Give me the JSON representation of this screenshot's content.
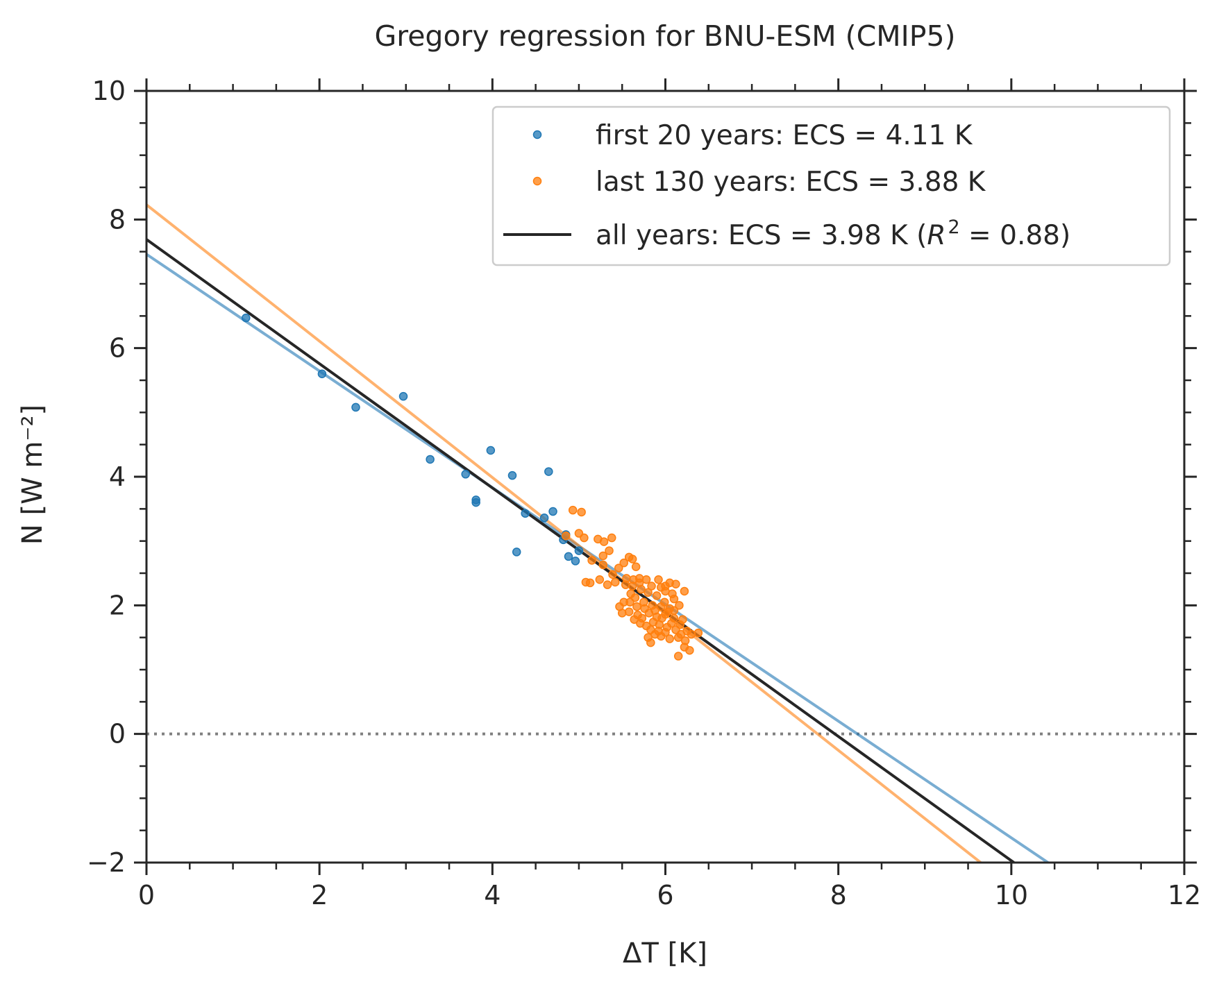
{
  "chart_data": {
    "type": "scatter",
    "title": "Gregory regression for BNU-ESM (CMIP5)",
    "xlabel": "ΔT [K]",
    "ylabel": "N [W m⁻²]",
    "xlim": [
      0,
      12
    ],
    "ylim": [
      -2,
      10
    ],
    "xticks": [
      0,
      2,
      4,
      6,
      8,
      10,
      12
    ],
    "yticks": [
      -2,
      0,
      2,
      4,
      6,
      8,
      10
    ],
    "xtick_labels": [
      "0",
      "2",
      "4",
      "6",
      "8",
      "10",
      "12"
    ],
    "ytick_labels": [
      "−2",
      "0",
      "2",
      "4",
      "6",
      "8",
      "10"
    ],
    "grid": false,
    "legend_position": "upper right",
    "colors": {
      "first": "#1f77b4",
      "last": "#ff7f0e",
      "all": "#262626",
      "zero_line": "#808080"
    },
    "series": [
      {
        "name": "first 20 years: ECS = 4.11 K",
        "kind": "scatter",
        "color": "#1f77b4",
        "points": [
          [
            1.15,
            6.47
          ],
          [
            2.03,
            5.6
          ],
          [
            2.42,
            5.08
          ],
          [
            2.97,
            5.25
          ],
          [
            3.28,
            4.27
          ],
          [
            3.69,
            4.04
          ],
          [
            3.81,
            3.6
          ],
          [
            3.81,
            3.64
          ],
          [
            3.98,
            4.41
          ],
          [
            4.23,
            4.02
          ],
          [
            4.28,
            2.83
          ],
          [
            4.38,
            3.43
          ],
          [
            4.6,
            3.36
          ],
          [
            4.65,
            4.08
          ],
          [
            4.7,
            3.46
          ],
          [
            4.82,
            3.02
          ],
          [
            4.88,
            2.76
          ],
          [
            4.96,
            2.69
          ],
          [
            5.0,
            2.85
          ],
          [
            4.85,
            3.1
          ]
        ]
      },
      {
        "name": "last 130 years: ECS = 3.88 K",
        "kind": "scatter",
        "color": "#ff7f0e",
        "points": [
          [
            4.93,
            3.48
          ],
          [
            5.03,
            3.45
          ],
          [
            5.0,
            3.12
          ],
          [
            5.06,
            3.05
          ],
          [
            4.85,
            3.08
          ],
          [
            5.22,
            3.03
          ],
          [
            5.29,
            2.99
          ],
          [
            5.38,
            3.05
          ],
          [
            5.28,
            2.77
          ],
          [
            5.35,
            2.85
          ],
          [
            5.15,
            2.7
          ],
          [
            5.28,
            2.63
          ],
          [
            5.52,
            2.66
          ],
          [
            5.58,
            2.75
          ],
          [
            5.62,
            2.72
          ],
          [
            5.66,
            2.6
          ],
          [
            5.46,
            2.58
          ],
          [
            5.39,
            2.48
          ],
          [
            5.08,
            2.36
          ],
          [
            5.13,
            2.35
          ],
          [
            5.24,
            2.4
          ],
          [
            5.33,
            2.32
          ],
          [
            5.42,
            2.36
          ],
          [
            5.55,
            2.42
          ],
          [
            5.63,
            2.4
          ],
          [
            5.7,
            2.42
          ],
          [
            5.78,
            2.4
          ],
          [
            5.84,
            2.3
          ],
          [
            5.95,
            2.28
          ],
          [
            6.0,
            2.3
          ],
          [
            6.05,
            2.35
          ],
          [
            6.12,
            2.33
          ],
          [
            6.22,
            2.22
          ],
          [
            5.72,
            2.25
          ],
          [
            5.8,
            2.2
          ],
          [
            5.9,
            2.15
          ],
          [
            6.1,
            2.1
          ],
          [
            5.6,
            2.18
          ],
          [
            5.65,
            2.12
          ],
          [
            5.75,
            2.05
          ],
          [
            5.85,
            2.0
          ],
          [
            5.95,
            1.98
          ],
          [
            6.05,
            1.95
          ],
          [
            6.16,
            2.0
          ],
          [
            5.52,
            2.05
          ],
          [
            5.47,
            1.98
          ],
          [
            5.5,
            1.88
          ],
          [
            5.58,
            1.9
          ],
          [
            5.68,
            1.85
          ],
          [
            5.73,
            1.8
          ],
          [
            5.81,
            1.88
          ],
          [
            5.9,
            1.82
          ],
          [
            6.0,
            1.86
          ],
          [
            6.1,
            1.8
          ],
          [
            6.2,
            1.78
          ],
          [
            5.64,
            1.78
          ],
          [
            5.71,
            1.72
          ],
          [
            5.78,
            1.68
          ],
          [
            5.86,
            1.74
          ],
          [
            5.93,
            1.7
          ],
          [
            6.02,
            1.66
          ],
          [
            6.12,
            1.62
          ],
          [
            6.25,
            1.6
          ],
          [
            6.3,
            1.55
          ],
          [
            6.38,
            1.57
          ],
          [
            5.88,
            1.55
          ],
          [
            5.95,
            1.52
          ],
          [
            6.05,
            1.48
          ],
          [
            6.15,
            1.5
          ],
          [
            6.23,
            1.45
          ],
          [
            5.8,
            1.5
          ],
          [
            5.83,
            1.42
          ],
          [
            6.22,
            1.35
          ],
          [
            6.15,
            1.21
          ],
          [
            6.28,
            1.3
          ],
          [
            5.62,
            2.3
          ],
          [
            5.7,
            2.35
          ],
          [
            5.92,
            2.4
          ],
          [
            6.0,
            2.22
          ],
          [
            6.08,
            2.18
          ],
          [
            5.54,
            2.32
          ],
          [
            5.59,
            2.05
          ],
          [
            5.67,
            1.98
          ],
          [
            5.76,
            1.95
          ],
          [
            5.99,
            2.05
          ],
          [
            6.03,
            1.9
          ],
          [
            6.1,
            1.92
          ],
          [
            5.88,
            1.92
          ],
          [
            5.96,
            1.8
          ],
          [
            6.17,
            1.7
          ],
          [
            6.07,
            1.72
          ],
          [
            5.83,
            1.62
          ],
          [
            5.92,
            1.6
          ],
          [
            6.0,
            1.58
          ],
          [
            6.18,
            1.55
          ]
        ]
      }
    ],
    "regressions": [
      {
        "name": "first 20 years",
        "color": "#1f77b4",
        "intercept": 7.46,
        "x_at_zero": 8.22,
        "style": "solid",
        "alpha": 0.6,
        "x_range": [
          0,
          10.43
        ]
      },
      {
        "name": "last 130 years",
        "color": "#ff7f0e",
        "intercept": 8.23,
        "x_at_zero": 7.76,
        "style": "solid",
        "alpha": 0.6,
        "x_range": [
          0,
          9.65
        ]
      },
      {
        "name": "all years: ECS = 3.98 K (R² = 0.88)",
        "color": "#262626",
        "intercept": 7.69,
        "x_at_zero": 7.96,
        "style": "solid",
        "alpha": 1.0,
        "x_range": [
          0,
          10.03
        ]
      }
    ],
    "zero_line": {
      "y": 0,
      "style": "dotted",
      "color": "#808080"
    },
    "legend": [
      {
        "label": "first 20 years: ECS = 4.11 K",
        "marker": "point",
        "color": "#1f77b4"
      },
      {
        "label": "last 130 years: ECS = 3.88 K",
        "marker": "point",
        "color": "#ff7f0e"
      },
      {
        "label_prefix": "all years: ECS = 3.98 K (",
        "label_italic": "R",
        "label_sup": "2",
        "label_suffix": " = 0.88)",
        "marker": "line",
        "color": "#262626"
      }
    ]
  }
}
